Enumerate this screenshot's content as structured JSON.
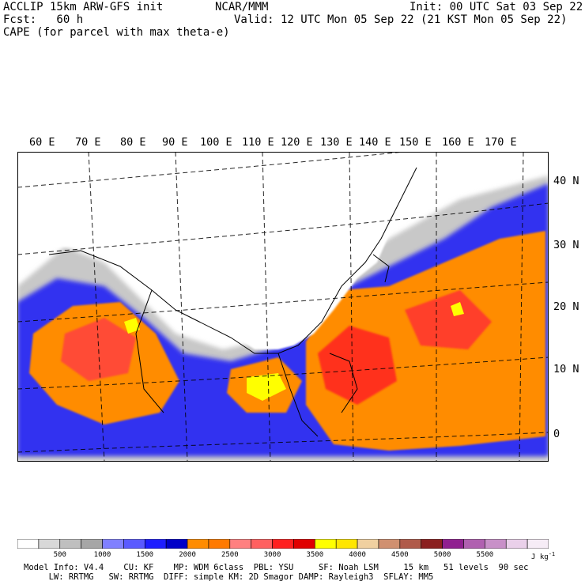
{
  "header": {
    "line1_left": "ACCLIP 15km ARW-GFS init",
    "line1_center": "NCAR/MMM",
    "line1_right": "Init: 00 UTC Sat 03 Sep 22",
    "line2_left": "Fcst:   60 h",
    "line2_right": "Valid: 12 UTC Mon 05 Sep 22 (21 KST Mon 05 Sep 22)",
    "line3": "CAPE (for parcel with max theta-e)"
  },
  "longitude_labels": [
    "60 E",
    "70 E",
    "80 E",
    "90 E",
    "100 E",
    "110 E",
    "120 E",
    "130 E",
    "140 E",
    "150 E",
    "160 E",
    "170 E"
  ],
  "latitude_labels": [
    "40 N",
    "30 N",
    "20 N",
    "10 N",
    "0"
  ],
  "colorbar": {
    "colors": [
      "#ffffff",
      "#d8d8d8",
      "#bfbfbf",
      "#a6a6a6",
      "#8080ff",
      "#5a5aff",
      "#1e1eff",
      "#0000c8",
      "#ff8c00",
      "#ff7a00",
      "#ff8080",
      "#ff6060",
      "#ff2020",
      "#e00000",
      "#ffff00",
      "#ffe600",
      "#f0d0a0",
      "#d09070",
      "#b05a4a",
      "#8b2020",
      "#902090",
      "#b060b0",
      "#c890c8",
      "#ead0ea",
      "#f6ecf6"
    ],
    "labels": [
      "500",
      "1000",
      "1500",
      "2000",
      "2500",
      "3000",
      "3500",
      "4000",
      "4500",
      "5000",
      "5500"
    ],
    "unit": "J kg",
    "unit_exp": "-1"
  },
  "footer": {
    "line1": "Model Info: V4.4    CU: KF    MP: WDM 6class  PBL: YSU     SF: Noah LSM     15 km   51 levels  90 sec",
    "line2": "     LW: RRTMG   SW: RRTMG  DIFF: simple KM: 2D Smagor DAMP: Rayleigh3  SFLAY: MM5"
  }
}
